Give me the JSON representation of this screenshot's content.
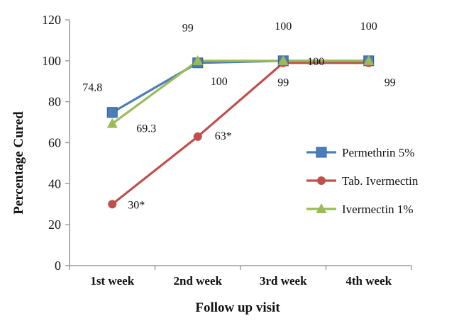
{
  "chart_data": {
    "type": "line",
    "xlabel": "Follow up visit",
    "ylabel": "Percentage Cured",
    "ylim": [
      0,
      120
    ],
    "yticks": [
      0,
      20,
      40,
      60,
      80,
      100,
      120
    ],
    "categories": [
      "1st week",
      "2nd week",
      "3rd week",
      "4th week"
    ],
    "legend_position": "right",
    "grid": false,
    "series": [
      {
        "name": "Permethrin 5%",
        "values": [
          74.8,
          99,
          100,
          100
        ],
        "labels": [
          "74.8",
          "99",
          "100",
          "100"
        ],
        "color": "#4a7ebb",
        "marker": "square"
      },
      {
        "name": "Tab. Ivermectin",
        "values": [
          30,
          63,
          99,
          99
        ],
        "labels": [
          "30*",
          "63*",
          "99",
          "99"
        ],
        "color": "#c0504d",
        "marker": "circle"
      },
      {
        "name": "Ivermectin 1%",
        "values": [
          69.3,
          100,
          100,
          100
        ],
        "labels": [
          "69.3",
          "100",
          "100",
          ""
        ],
        "color": "#9bbb59",
        "marker": "triangle"
      }
    ]
  }
}
